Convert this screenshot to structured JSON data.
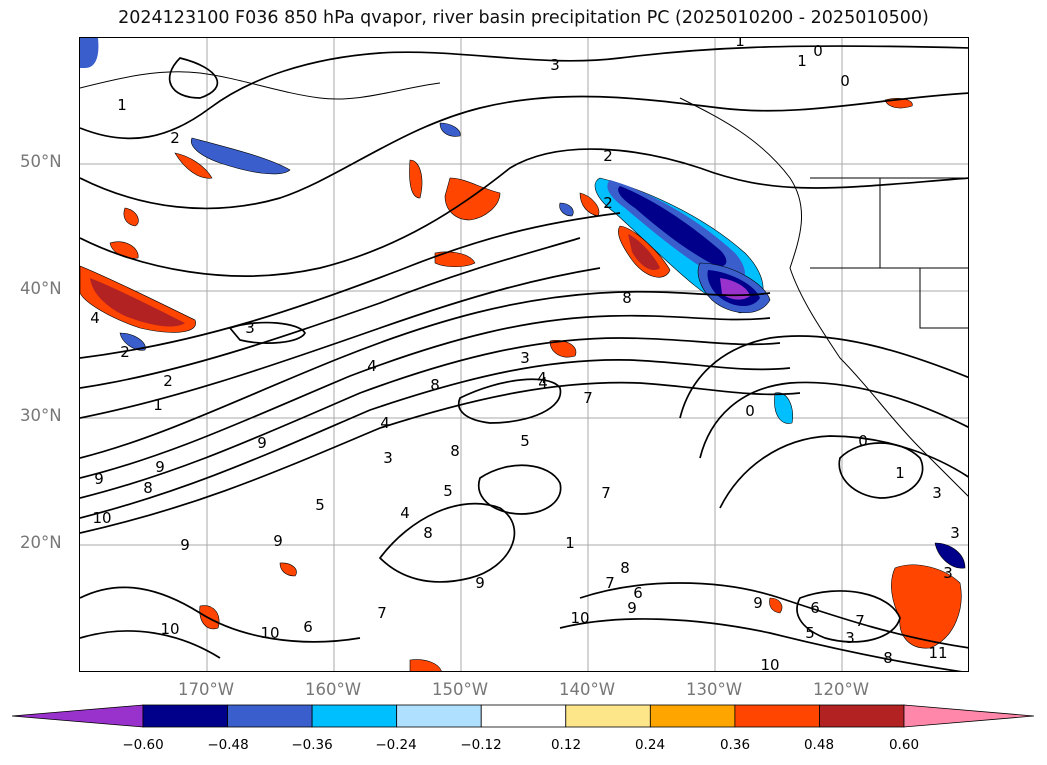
{
  "title": "2024123100 F036 850 hPa qvapor, river basin precipitation PC (2025010200 - 2025010500)",
  "lat_labels": [
    "50°N",
    "40°N",
    "30°N",
    "20°N"
  ],
  "lon_labels": [
    "170°W",
    "160°W",
    "150°W",
    "140°W",
    "130°W",
    "120°W"
  ],
  "contour_labels": [
    "1",
    "2",
    "3",
    "2",
    "1",
    "0",
    "1",
    "0",
    "4",
    "2",
    "1",
    "2",
    "3",
    "4",
    "4",
    "8",
    "3",
    "4",
    "8",
    "5",
    "9",
    "9",
    "8",
    "4",
    "3",
    "5",
    "8",
    "4",
    "7",
    "1",
    "7",
    "0",
    "0",
    "1",
    "3",
    "3",
    "9",
    "10",
    "8",
    "5",
    "9",
    "9",
    "6",
    "6",
    "7",
    "10",
    "9",
    "10",
    "9",
    "7",
    "8",
    "5",
    "3",
    "9",
    "6",
    "10",
    "2",
    "11",
    "7",
    "10",
    "3",
    "8"
  ],
  "colorbar": {
    "tick_labels": [
      "−0.60",
      "−0.48",
      "−0.36",
      "−0.24",
      "−0.12",
      "0.12",
      "0.24",
      "0.36",
      "0.48",
      "0.60"
    ],
    "colors": [
      "#9932cc",
      "#00008b",
      "#3a5fcd",
      "#00bfff",
      "#b0e0ff",
      "#ffffff",
      "#fde68a",
      "#ffa500",
      "#ff4500",
      "#b22222",
      "#ff88aa"
    ],
    "under_color": "#9932cc",
    "over_color": "#ff88aa"
  }
}
